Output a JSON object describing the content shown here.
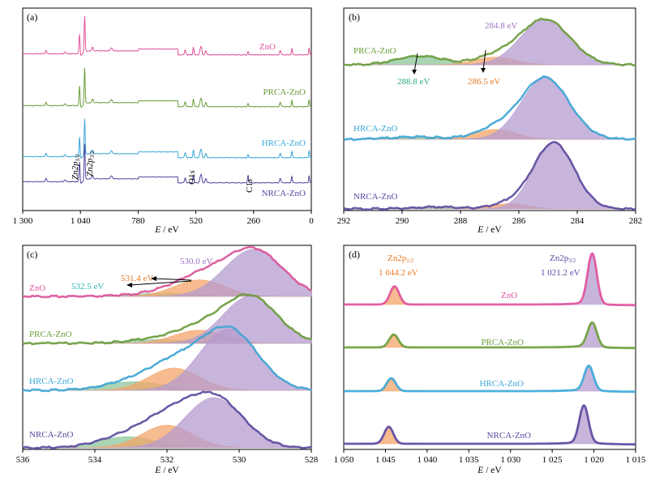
{
  "panels": [
    {
      "id": "a",
      "letter": "(a)",
      "xlabel": "E / eV",
      "xlim": [
        1300,
        0
      ],
      "ticks": [
        1300,
        1040,
        780,
        520,
        260,
        0
      ],
      "tick_labels": [
        "1 300",
        "1 040",
        "780",
        "520",
        "260",
        "0"
      ],
      "colors": {
        "ZnO": "#e0519b",
        "PRCA-ZnO": "#6a9e3a",
        "HRCA-ZnO": "#3aa7d9",
        "NRCA-ZnO": "#5b46a0"
      },
      "spectra_labels": [
        "ZnO",
        "PRCA-ZnO",
        "HRCA-ZnO",
        "NRCA-ZnO"
      ],
      "peak_labels": [
        {
          "text": "Zn2p1/2",
          "main": "Zn2p",
          "sub": "1/2",
          "x": 1044
        },
        {
          "text": "Zn2p3/2",
          "main": "Zn2p",
          "sub": "3/2",
          "x": 1021
        },
        {
          "text": "O1s",
          "main": "O1",
          "sub": "s",
          "x": 531
        },
        {
          "text": "C1s",
          "main": "C1",
          "sub": "s",
          "x": 285
        }
      ]
    },
    {
      "id": "b",
      "letter": "(b)",
      "xlabel": "E / eV",
      "xlim": [
        292,
        282
      ],
      "ticks": [
        292,
        290,
        288,
        286,
        284,
        282
      ],
      "tick_labels": [
        "292",
        "290",
        "288",
        "286",
        "284",
        "282"
      ],
      "spectra_labels": [
        "PRCA-ZnO",
        "HRCA-ZnO",
        "NRCA-ZnO"
      ],
      "annotations": [
        "284.8 eV",
        "288.8 eV",
        "286.5 eV"
      ]
    },
    {
      "id": "c",
      "letter": "(c)",
      "xlabel": "E / eV",
      "xlim": [
        536,
        528
      ],
      "ticks": [
        536,
        534,
        532,
        530,
        528
      ],
      "tick_labels": [
        "536",
        "534",
        "532",
        "530",
        "528"
      ],
      "spectra_labels": [
        "ZnO",
        "PRCA-ZnO",
        "HRCA-ZnO",
        "NRCA-ZnO"
      ],
      "annotations": [
        "530.0 eV",
        "531.4 eV",
        "532.5 eV"
      ]
    },
    {
      "id": "d",
      "letter": "(d)",
      "xlabel": "E / eV",
      "xlim": [
        1050,
        1015
      ],
      "ticks": [
        1050,
        1045,
        1040,
        1035,
        1030,
        1025,
        1020,
        1015
      ],
      "tick_labels": [
        "1 050",
        "1 045",
        "1 040",
        "1 035",
        "1 030",
        "1 025",
        "1 020",
        "1 015"
      ],
      "spectra_labels": [
        "ZnO",
        "PRCA-ZnO",
        "HRCA-ZnO",
        "NRCA-ZnO"
      ],
      "annotations": [
        {
          "main": "Zn2p",
          "sub": "1/2",
          "value": "1 044.2 eV"
        },
        {
          "main": "Zn2p",
          "sub": "3/2",
          "value": "1 021.2 eV"
        }
      ]
    }
  ],
  "chart_data": [
    {
      "type": "line",
      "panel": "a",
      "xlabel": "E / eV",
      "ylabel": "",
      "xlim": [
        1300,
        0
      ],
      "series": [
        {
          "name": "ZnO",
          "peaks_x": [
            1044,
            1021,
            531,
            285,
            88,
            10
          ]
        },
        {
          "name": "PRCA-ZnO",
          "peaks_x": [
            1044,
            1021,
            531,
            285,
            88,
            10
          ]
        },
        {
          "name": "HRCA-ZnO",
          "peaks_x": [
            1044,
            1021,
            531,
            285,
            88,
            10
          ]
        },
        {
          "name": "NRCA-ZnO",
          "peaks_x": [
            1044,
            1021,
            531,
            285,
            88,
            10
          ]
        }
      ]
    },
    {
      "type": "area",
      "panel": "b",
      "xlabel": "E / eV",
      "xlim": [
        292,
        282
      ],
      "components_x": [
        284.8,
        286.5,
        288.8
      ],
      "series": [
        {
          "name": "PRCA-ZnO",
          "components": [
            {
              "x": 285.1,
              "h": 1.0,
              "w": 0.85
            },
            {
              "x": 286.8,
              "h": 0.17,
              "w": 0.7
            },
            {
              "x": 289.4,
              "h": 0.19,
              "w": 0.8
            }
          ]
        },
        {
          "name": "HRCA-ZnO",
          "components": [
            {
              "x": 285.1,
              "h": 1.0,
              "w": 0.82
            },
            {
              "x": 286.8,
              "h": 0.16,
              "w": 0.7
            },
            {
              "x": 289.5,
              "h": 0.04,
              "w": 0.8
            }
          ]
        },
        {
          "name": "NRCA-ZnO",
          "components": [
            {
              "x": 284.8,
              "h": 1.0,
              "w": 0.7
            },
            {
              "x": 286.3,
              "h": 0.08,
              "w": 0.6
            },
            {
              "x": 288.8,
              "h": 0.03,
              "w": 0.8
            }
          ]
        }
      ]
    },
    {
      "type": "area",
      "panel": "c",
      "xlabel": "E / eV",
      "xlim": [
        536,
        528
      ],
      "components_x": [
        530.0,
        531.4,
        532.5
      ],
      "series": [
        {
          "name": "ZnO",
          "components": [
            {
              "x": 529.6,
              "h": 1.0,
              "w": 0.8
            },
            {
              "x": 531.1,
              "h": 0.35,
              "w": 0.7
            },
            {
              "x": 532.1,
              "h": 0.07,
              "w": 0.8
            }
          ]
        },
        {
          "name": "PRCA-ZnO",
          "components": [
            {
              "x": 529.7,
              "h": 1.0,
              "w": 0.75
            },
            {
              "x": 531.1,
              "h": 0.28,
              "w": 0.7
            },
            {
              "x": 532.3,
              "h": 0.08,
              "w": 0.8
            }
          ]
        },
        {
          "name": "HRCA-ZnO",
          "components": [
            {
              "x": 530.3,
              "h": 1.0,
              "w": 0.8
            },
            {
              "x": 531.8,
              "h": 0.36,
              "w": 0.7
            },
            {
              "x": 532.9,
              "h": 0.14,
              "w": 0.8
            }
          ]
        },
        {
          "name": "NRCA-ZnO",
          "components": [
            {
              "x": 530.7,
              "h": 1.0,
              "w": 0.8
            },
            {
              "x": 532.0,
              "h": 0.45,
              "w": 0.7
            },
            {
              "x": 533.1,
              "h": 0.22,
              "w": 0.8
            }
          ]
        }
      ]
    },
    {
      "type": "area",
      "panel": "d",
      "xlabel": "E / eV",
      "xlim": [
        1050,
        1015
      ],
      "components_x": [
        1044.2,
        1021.2
      ],
      "series": [
        {
          "name": "ZnO",
          "peaks": [
            {
              "x": 1043.9,
              "h": 0.36
            },
            {
              "x": 1020.2,
              "h": 1.0
            }
          ]
        },
        {
          "name": "PRCA-ZnO",
          "peaks": [
            {
              "x": 1044.0,
              "h": 0.33
            },
            {
              "x": 1020.2,
              "h": 0.62
            }
          ]
        },
        {
          "name": "HRCA-ZnO",
          "peaks": [
            {
              "x": 1044.3,
              "h": 0.33
            },
            {
              "x": 1020.6,
              "h": 0.62
            }
          ]
        },
        {
          "name": "NRCA-ZnO",
          "peaks": [
            {
              "x": 1044.6,
              "h": 0.36
            },
            {
              "x": 1021.2,
              "h": 0.78
            }
          ]
        }
      ]
    }
  ],
  "colors": {
    "ZnO": "#e0519b",
    "PRCA-ZnO": "#6a9e3a",
    "HRCA-ZnO": "#3aa7d9",
    "NRCA-ZnO": "#5b46a0",
    "main_fill": "#b59ccf",
    "orange_fill": "#f3a46a",
    "green_fill": "#8ec79b",
    "ann_purple": "#9d6fc0",
    "ann_orange": "#e87722",
    "ann_green": "#2bab7b",
    "ann_teal": "#2bb5b0"
  }
}
